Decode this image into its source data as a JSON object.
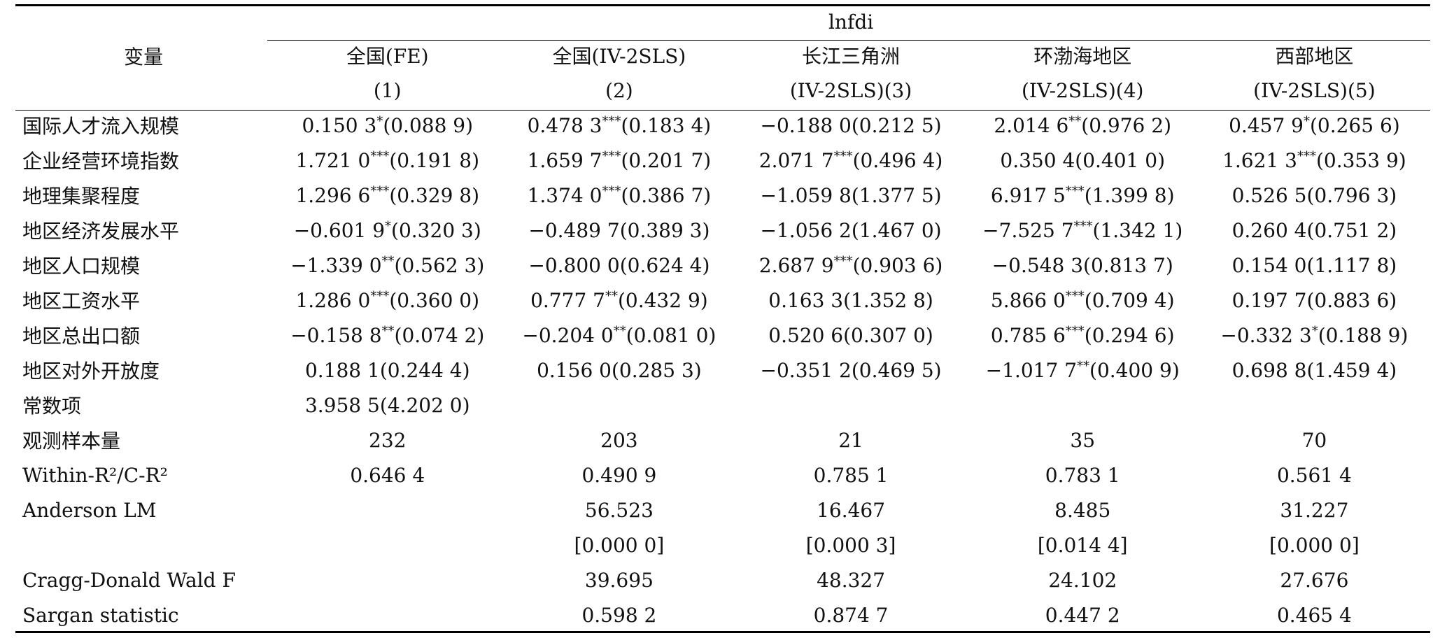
{
  "header": {
    "variable_label": "变量",
    "dep_var": "lnfdi",
    "columns": [
      {
        "name": "全国(FE)",
        "num": "(1)"
      },
      {
        "name": "全国(IV-2SLS)",
        "num": "(2)"
      },
      {
        "name": "长江三角洲",
        "num": "(IV-2SLS)(3)"
      },
      {
        "name": "环渤海地区",
        "num": "(IV-2SLS)(4)"
      },
      {
        "name": "西部地区",
        "num": "(IV-2SLS)(5)"
      }
    ]
  },
  "rows": [
    {
      "label": "国际人才流入规模",
      "cells": [
        {
          "coef": "0.150 3",
          "stars": "*",
          "se": "(0.088 9)"
        },
        {
          "coef": "0.478 3",
          "stars": "***",
          "se": "(0.183 4)"
        },
        {
          "coef": "−0.188 0",
          "stars": "",
          "se": "(0.212 5)"
        },
        {
          "coef": "2.014 6",
          "stars": "**",
          "se": "(0.976 2)"
        },
        {
          "coef": "0.457 9",
          "stars": "*",
          "se": "(0.265 6)"
        }
      ]
    },
    {
      "label": "企业经营环境指数",
      "cells": [
        {
          "coef": "1.721 0",
          "stars": "***",
          "se": "(0.191 8)"
        },
        {
          "coef": "1.659 7",
          "stars": "***",
          "se": "(0.201 7)"
        },
        {
          "coef": "2.071 7",
          "stars": "***",
          "se": "(0.496 4)"
        },
        {
          "coef": "0.350 4",
          "stars": "",
          "se": "(0.401 0)"
        },
        {
          "coef": "1.621 3",
          "stars": "***",
          "se": "(0.353 9)"
        }
      ]
    },
    {
      "label": "地理集聚程度",
      "cells": [
        {
          "coef": "1.296 6",
          "stars": "***",
          "se": "(0.329 8)"
        },
        {
          "coef": "1.374 0",
          "stars": "***",
          "se": "(0.386 7)"
        },
        {
          "coef": "−1.059 8",
          "stars": "",
          "se": "(1.377 5)"
        },
        {
          "coef": "6.917 5",
          "stars": "***",
          "se": "(1.399 8)"
        },
        {
          "coef": "0.526 5",
          "stars": "",
          "se": "(0.796 3)"
        }
      ]
    },
    {
      "label": "地区经济发展水平",
      "cells": [
        {
          "coef": "−0.601 9",
          "stars": "*",
          "se": "(0.320 3)"
        },
        {
          "coef": "−0.489 7",
          "stars": "",
          "se": "(0.389 3)"
        },
        {
          "coef": "−1.056 2",
          "stars": "",
          "se": "(1.467 0)"
        },
        {
          "coef": "−7.525 7",
          "stars": "***",
          "se": "(1.342 1)"
        },
        {
          "coef": "0.260 4",
          "stars": "",
          "se": "(0.751 2)"
        }
      ]
    },
    {
      "label": "地区人口规模",
      "cells": [
        {
          "coef": "−1.339 0",
          "stars": "**",
          "se": "(0.562 3)"
        },
        {
          "coef": "−0.800 0",
          "stars": "",
          "se": "(0.624 4)"
        },
        {
          "coef": "2.687 9",
          "stars": "***",
          "se": "(0.903 6)"
        },
        {
          "coef": "−0.548 3",
          "stars": "",
          "se": "(0.813 7)"
        },
        {
          "coef": "0.154 0",
          "stars": "",
          "se": "(1.117 8)"
        }
      ]
    },
    {
      "label": "地区工资水平",
      "cells": [
        {
          "coef": "1.286 0",
          "stars": "***",
          "se": "(0.360 0)"
        },
        {
          "coef": "0.777 7",
          "stars": "**",
          "se": "(0.432 9)"
        },
        {
          "coef": "0.163 3",
          "stars": "",
          "se": "(1.352 8)"
        },
        {
          "coef": "5.866 0",
          "stars": "***",
          "se": "(0.709 4)"
        },
        {
          "coef": "0.197 7",
          "stars": "",
          "se": "(0.883 6)"
        }
      ]
    },
    {
      "label": "地区总出口额",
      "cells": [
        {
          "coef": "−0.158 8",
          "stars": "**",
          "se": "(0.074 2)"
        },
        {
          "coef": "−0.204 0",
          "stars": "**",
          "se": "(0.081 0)"
        },
        {
          "coef": "0.520 6",
          "stars": "",
          "se": "(0.307 0)"
        },
        {
          "coef": "0.785 6",
          "stars": "***",
          "se": "(0.294 6)"
        },
        {
          "coef": "−0.332 3",
          "stars": "*",
          "se": "(0.188 9)"
        }
      ]
    },
    {
      "label": "地区对外开放度",
      "cells": [
        {
          "coef": "0.188 1",
          "stars": "",
          "se": "(0.244 4)"
        },
        {
          "coef": "0.156 0",
          "stars": "",
          "se": "(0.285 3)"
        },
        {
          "coef": "−0.351 2",
          "stars": "",
          "se": "(0.469 5)"
        },
        {
          "coef": "−1.017 7",
          "stars": "**",
          "se": "(0.400 9)"
        },
        {
          "coef": "0.698 8",
          "stars": "",
          "se": "(1.459 4)"
        }
      ]
    },
    {
      "label": "常数项",
      "cells": [
        {
          "coef": "3.958 5",
          "stars": "",
          "se": "(4.202 0)"
        },
        {
          "coef": "",
          "stars": "",
          "se": ""
        },
        {
          "coef": "",
          "stars": "",
          "se": ""
        },
        {
          "coef": "",
          "stars": "",
          "se": ""
        },
        {
          "coef": "",
          "stars": "",
          "se": ""
        }
      ]
    }
  ],
  "stats": [
    {
      "label": "观测样本量",
      "values": [
        "232",
        "203",
        "21",
        "35",
        "70"
      ]
    },
    {
      "label": "Within-R²/C-R²",
      "values": [
        "0.646 4",
        "0.490 9",
        "0.785 1",
        "0.783 1",
        "0.561 4"
      ]
    },
    {
      "label": "Anderson LM",
      "values": [
        "",
        "56.523",
        "16.467",
        "8.485",
        "31.227"
      ]
    },
    {
      "label": "",
      "values": [
        "",
        "[0.000 0]",
        "[0.000 3]",
        "[0.014 4]",
        "[0.000 0]"
      ]
    },
    {
      "label": "Cragg-Donald Wald F",
      "values": [
        "",
        "39.695",
        "48.327",
        "24.102",
        "27.676"
      ]
    },
    {
      "label": "Sargan statistic",
      "values": [
        "",
        "0.598 2",
        "0.874 7",
        "0.447 2",
        "0.465 4"
      ]
    }
  ]
}
